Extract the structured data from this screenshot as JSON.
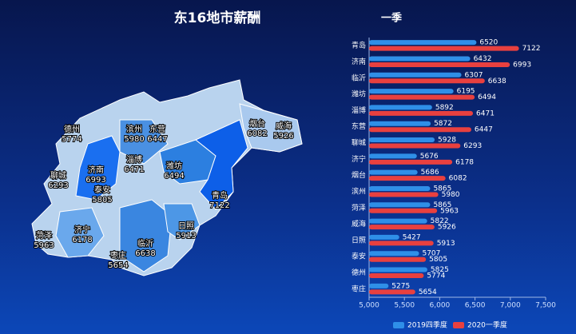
{
  "chart_data": {
    "type": "bar",
    "title": "东16地市薪酬",
    "subtitle": "一季",
    "categories": [
      "青岛",
      "济南",
      "临沂",
      "潍坊",
      "淄博",
      "东营",
      "聊城",
      "济宁",
      "烟台",
      "滨州",
      "菏泽",
      "威海",
      "日照",
      "泰安",
      "德州",
      "枣庄"
    ],
    "series": [
      {
        "name": "2019四季度",
        "color": "#2f8fe8",
        "values": [
          6520,
          6432,
          6307,
          6195,
          5892,
          5872,
          5928,
          5676,
          5686,
          5865,
          5865,
          5822,
          5427,
          5707,
          5825,
          5275
        ]
      },
      {
        "name": "2020一季度",
        "color": "#e8403f",
        "values": [
          7122,
          6993,
          6638,
          6494,
          6471,
          6447,
          6293,
          6178,
          6082,
          5980,
          5963,
          5926,
          5913,
          5805,
          5774,
          5654
        ]
      }
    ],
    "xlim": [
      5000,
      7500
    ],
    "xticks": [
      {
        "value": 5000,
        "label": "5,000"
      },
      {
        "value": 5500,
        "label": "5,500"
      },
      {
        "value": 6000,
        "label": "6,000"
      },
      {
        "value": 6500,
        "label": "6,500"
      },
      {
        "value": 7000,
        "label": "7,000"
      },
      {
        "value": 7500,
        "label": "7,500"
      }
    ],
    "orientation": "horizontal"
  }
}
